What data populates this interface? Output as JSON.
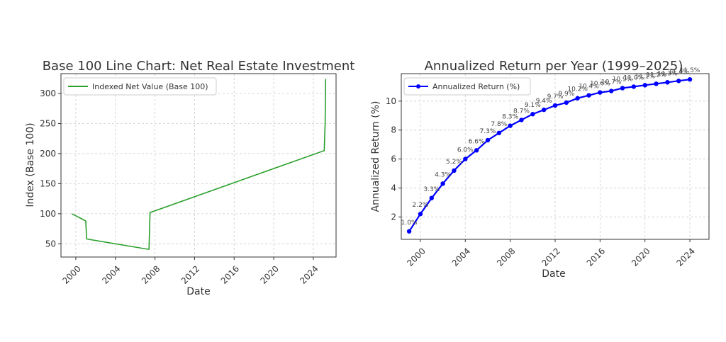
{
  "chart_data": [
    {
      "type": "line",
      "title": "Base 100 Line Chart: Net Real Estate Investment",
      "xlabel": "Date",
      "ylabel": "Index (Base 100)",
      "x_ticks": [
        "2000",
        "2004",
        "2008",
        "2012",
        "2016",
        "2020",
        "2024"
      ],
      "y_ticks": [
        "50",
        "100",
        "150",
        "200",
        "250",
        "300"
      ],
      "xlim": [
        1998.5,
        2026.3
      ],
      "ylim": [
        28,
        333
      ],
      "grid": true,
      "legend": "top-left",
      "color": "#2ca02c",
      "series": [
        {
          "name": "Indexed Net Value (Base 100)",
          "x": [
            1999.6,
            2001.0,
            2001.1,
            2007.3,
            2007.4,
            2007.5,
            2025.1,
            2025.2,
            2025.25
          ],
          "y": [
            100,
            88,
            58,
            41,
            41,
            102,
            205,
            250,
            324
          ]
        }
      ]
    },
    {
      "type": "line",
      "title": "Annualized Return per Year (1999–2025)",
      "xlabel": "Date",
      "ylabel": "Annualized Return (%)",
      "x_ticks": [
        "2000",
        "2004",
        "2008",
        "2012",
        "2016",
        "2020",
        "2024"
      ],
      "y_ticks": [
        "2",
        "4",
        "6",
        "8",
        "10"
      ],
      "xlim": [
        1998.3,
        2025.7
      ],
      "ylim": [
        0.45,
        11.9
      ],
      "grid": true,
      "legend": "top-left",
      "color": "#0000ff",
      "series": [
        {
          "name": "Annualized Return (%)",
          "x": [
            1999,
            2000,
            2001,
            2002,
            2003,
            2004,
            2005,
            2006,
            2007,
            2008,
            2009,
            2010,
            2011,
            2012,
            2013,
            2014,
            2015,
            2016,
            2017,
            2018,
            2019,
            2020,
            2021,
            2022,
            2023,
            2024
          ],
          "y": [
            1.0,
            2.2,
            3.3,
            4.3,
            5.2,
            6.0,
            6.6,
            7.3,
            7.8,
            8.3,
            8.7,
            9.1,
            9.4,
            9.7,
            9.9,
            10.2,
            10.4,
            10.6,
            10.7,
            10.9,
            11.0,
            11.1,
            11.2,
            11.3,
            11.4,
            11.5
          ],
          "labels": [
            "1.0%",
            "2.2%",
            "3.3%",
            "4.3%",
            "5.2%",
            "6.0%",
            "6.6%",
            "7.3%",
            "7.8%",
            "8.3%",
            "8.7%",
            "9.1%",
            "9.4%",
            "9.7%",
            "9.9%",
            "10.2%",
            "10.4%",
            "10.6%",
            "10.7%",
            "10.9%",
            "11.0%",
            "11.1%",
            "11.2%",
            "11.3%",
            "11.4%",
            "11.5%"
          ]
        }
      ]
    }
  ]
}
